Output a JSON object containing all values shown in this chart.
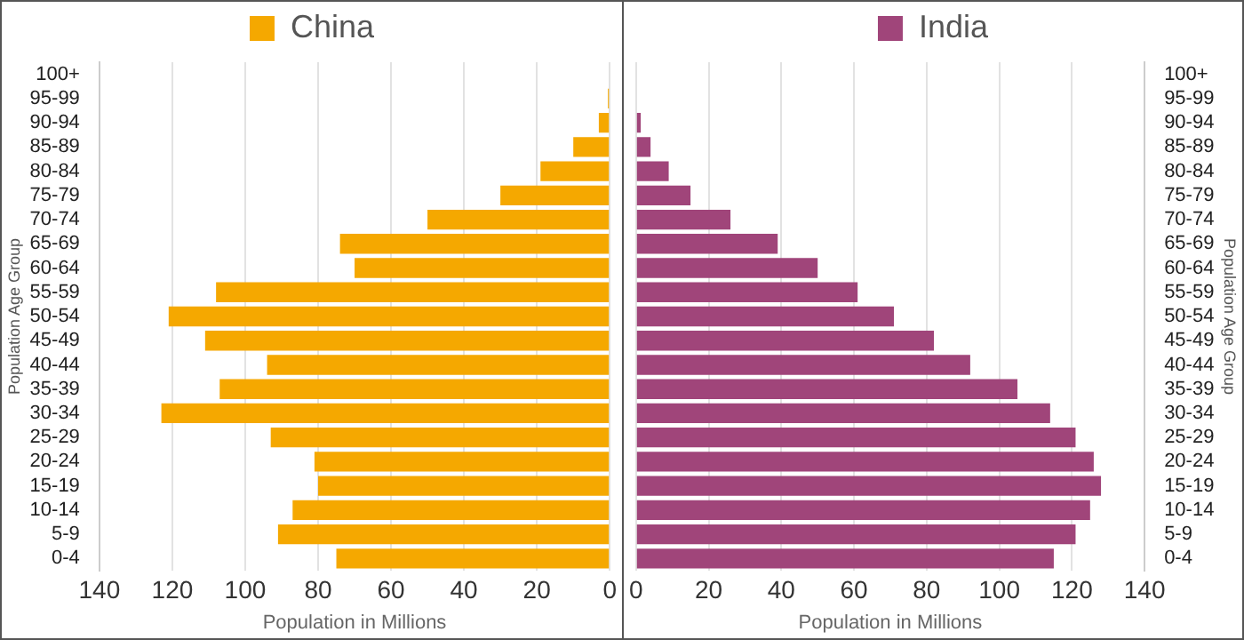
{
  "chart_data": [
    {
      "type": "bar",
      "orientation": "horizontal",
      "ylabel": "Population Age Group",
      "xlabel": "Population in Millions",
      "categories": [
        "100+",
        "95-99",
        "90-94",
        "85-89",
        "80-84",
        "75-79",
        "70-74",
        "65-69",
        "60-64",
        "55-59",
        "50-54",
        "45-49",
        "40-44",
        "35-39",
        "30-34",
        "25-29",
        "20-24",
        "15-19",
        "10-14",
        "5-9",
        "0-4"
      ],
      "series": [
        {
          "name": "China",
          "color": "#f5a800",
          "values": [
            0,
            0.5,
            3,
            10,
            19,
            30,
            50,
            74,
            70,
            108,
            121,
            111,
            94,
            107,
            123,
            93,
            81,
            80,
            87,
            91,
            75
          ]
        }
      ],
      "xlim": [
        140,
        0
      ],
      "xticks": [
        140,
        120,
        100,
        80,
        60,
        40,
        20,
        0
      ],
      "grid": "x",
      "legend": "top"
    },
    {
      "type": "bar",
      "orientation": "horizontal",
      "ylabel": "Population Age Group",
      "xlabel": "Population in Millions",
      "categories": [
        "100+",
        "95-99",
        "90-94",
        "85-89",
        "80-84",
        "75-79",
        "70-74",
        "65-69",
        "60-64",
        "55-59",
        "50-54",
        "45-49",
        "40-44",
        "35-39",
        "30-34",
        "25-29",
        "20-24",
        "15-19",
        "10-14",
        "5-9",
        "0-4"
      ],
      "series": [
        {
          "name": "India",
          "color": "#a0457a",
          "values": [
            0,
            null,
            1.3,
            4,
            9,
            15,
            26,
            39,
            50,
            61,
            71,
            82,
            92,
            105,
            114,
            121,
            126,
            128,
            125,
            121,
            115
          ]
        }
      ],
      "xlim": [
        0,
        140
      ],
      "xticks": [
        0,
        20,
        40,
        60,
        80,
        100,
        120,
        140
      ],
      "grid": "x",
      "legend": "top"
    }
  ]
}
